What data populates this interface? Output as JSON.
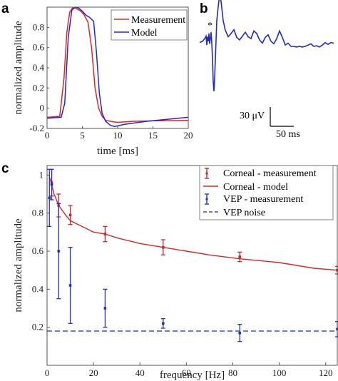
{
  "panels": {
    "a": "a",
    "b": "b",
    "c": "c"
  },
  "chart_data": [
    {
      "panel": "a",
      "type": "line",
      "xlabel": "time [ms]",
      "ylabel": "normalized amplitude",
      "xlim": [
        0,
        20
      ],
      "ylim": [
        -0.2,
        1.0
      ],
      "xticks": [
        0,
        5,
        10,
        15,
        20
      ],
      "yticks": [
        -0.2,
        0,
        0.2,
        0.4,
        0.6,
        0.8
      ],
      "grid": false,
      "legend_position": "top-right",
      "series": [
        {
          "name": "Measurement",
          "color": "#e8202a",
          "x": [
            0,
            1.8,
            2.4,
            2.8,
            3.2,
            3.6,
            4.0,
            4.6,
            5.2,
            5.8,
            6.3,
            6.8,
            7.3,
            7.8,
            8.3,
            9.0,
            10.0,
            12.0,
            15.0,
            20.0
          ],
          "y": [
            -0.09,
            -0.08,
            0.3,
            0.75,
            0.95,
            0.99,
            0.99,
            0.97,
            0.93,
            0.85,
            0.6,
            0.2,
            0.0,
            -0.08,
            -0.12,
            -0.13,
            -0.14,
            -0.13,
            -0.125,
            -0.12
          ]
        },
        {
          "name": "Model",
          "color": "#1f2bc7",
          "x": [
            0,
            2.0,
            2.5,
            3.0,
            3.5,
            4.0,
            4.5,
            5.0,
            5.5,
            6.0,
            6.6,
            7.0,
            7.4,
            7.8,
            8.3,
            9.0,
            9.6,
            11.0,
            14.0,
            20.0
          ],
          "y": [
            -0.1,
            -0.09,
            0.05,
            0.7,
            0.97,
            1.0,
            0.99,
            0.96,
            0.92,
            0.9,
            0.86,
            0.55,
            0.15,
            -0.05,
            -0.13,
            -0.17,
            -0.18,
            -0.16,
            -0.13,
            -0.09
          ]
        }
      ]
    },
    {
      "panel": "b",
      "type": "line",
      "annotation": "*",
      "scale_bar": {
        "vertical_label": "30 μV",
        "horizontal_label": "50 ms"
      },
      "series": [
        {
          "color": "#1f2bc7",
          "x": [
            0,
            4,
            7,
            9,
            10,
            11,
            12,
            13,
            14,
            15,
            16,
            17,
            18,
            19,
            20,
            21,
            22,
            23,
            24,
            26,
            28,
            30,
            33,
            36,
            40,
            44,
            48,
            52,
            56,
            60,
            64,
            68,
            72,
            76,
            80,
            84,
            88,
            92,
            96,
            100,
            104,
            108,
            112,
            116,
            120,
            124,
            128,
            132,
            136,
            140,
            144,
            148,
            152,
            156,
            160,
            164,
            168,
            172,
            176,
            180,
            184,
            188
          ],
          "y": [
            6,
            8,
            12,
            16,
            2,
            15,
            8,
            20,
            4,
            12,
            22,
            5,
            -20,
            -55,
            -70,
            -50,
            -20,
            10,
            40,
            62,
            80,
            70,
            40,
            25,
            15,
            20,
            26,
            14,
            10,
            16,
            22,
            15,
            12,
            24,
            20,
            10,
            5,
            14,
            18,
            8,
            4,
            12,
            24,
            14,
            2,
            5,
            0,
            0,
            -1,
            0,
            -1,
            0,
            2,
            4,
            0,
            1,
            -1,
            2,
            6,
            3,
            6,
            5
          ]
        }
      ]
    },
    {
      "panel": "c",
      "type": "scatter",
      "xlabel": "frequency [Hz]",
      "ylabel": "normalized amplitude",
      "xlim": [
        0,
        125
      ],
      "ylim": [
        0,
        1.05
      ],
      "xticks": [
        0,
        20,
        40,
        60,
        80,
        100,
        120
      ],
      "yticks": [
        0.2,
        0.4,
        0.6,
        0.8,
        1
      ],
      "grid": false,
      "legend_position": "top-right",
      "series": [
        {
          "name": "Corneal - measurement",
          "kind": "errorbar",
          "color": "#c0282d",
          "x": [
            2,
            5,
            10,
            25,
            50,
            83,
            125
          ],
          "y": [
            0.96,
            0.84,
            0.79,
            0.69,
            0.62,
            0.57,
            0.5
          ],
          "err": [
            0.07,
            0.06,
            0.05,
            0.04,
            0.04,
            0.025,
            0.02
          ]
        },
        {
          "name": "Corneal - model",
          "kind": "line",
          "color": "#d62728",
          "x": [
            1,
            2,
            3,
            5,
            8,
            10,
            15,
            20,
            25,
            30,
            40,
            50,
            60,
            70,
            83,
            100,
            115,
            125
          ],
          "y": [
            0.99,
            0.95,
            0.9,
            0.84,
            0.79,
            0.76,
            0.73,
            0.7,
            0.69,
            0.67,
            0.64,
            0.62,
            0.6,
            0.58,
            0.56,
            0.54,
            0.51,
            0.5
          ]
        },
        {
          "name": "VEP - measurement",
          "kind": "errorbar",
          "color": "#2233c4",
          "x": [
            1,
            2,
            5,
            10,
            25,
            50,
            83,
            125
          ],
          "y": [
            0.88,
            0.95,
            0.6,
            0.42,
            0.3,
            0.22,
            0.17,
            0.19
          ],
          "err": [
            0.15,
            0.08,
            0.25,
            0.2,
            0.1,
            0.025,
            0.045,
            0.04
          ]
        },
        {
          "name": "VEP noise",
          "kind": "dashed",
          "color": "#3a4fd4",
          "x": [
            0,
            125
          ],
          "y": [
            0.18,
            0.18
          ]
        }
      ]
    }
  ]
}
